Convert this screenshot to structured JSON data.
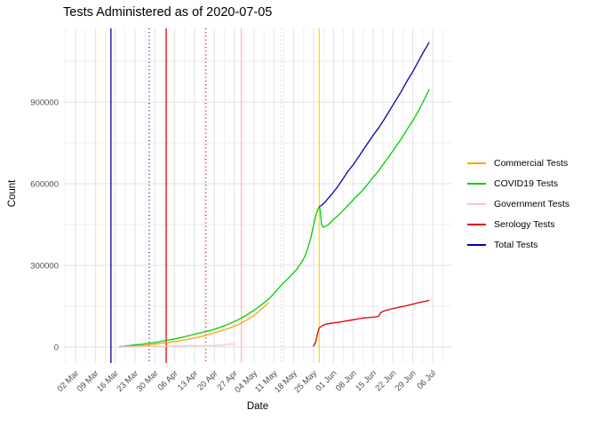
{
  "title": "Tests Administered as of 2020-07-05",
  "chart_data": {
    "type": "line",
    "title": "Tests Administered as of 2020-07-05",
    "xlabel": "Date",
    "ylabel": "Count",
    "x_unit": "days since 02 Mar 2020",
    "grid": true,
    "legend_position": "right",
    "ylim": [
      -56000,
      1171000
    ],
    "y_ticks": [
      0,
      300000,
      600000,
      900000
    ],
    "y_minor_ticks": [
      150000,
      450000,
      750000,
      1050000
    ],
    "x_ticks": [
      {
        "label": "02 Mar",
        "day": 0
      },
      {
        "label": "09 Mar",
        "day": 7
      },
      {
        "label": "16 Mar",
        "day": 14
      },
      {
        "label": "23 Mar",
        "day": 21
      },
      {
        "label": "30 Mar",
        "day": 28
      },
      {
        "label": "06 Apr",
        "day": 35
      },
      {
        "label": "13 Apr",
        "day": 42
      },
      {
        "label": "20 Apr",
        "day": 49
      },
      {
        "label": "27 Apr",
        "day": 56
      },
      {
        "label": "04 May",
        "day": 63
      },
      {
        "label": "11 May",
        "day": 70
      },
      {
        "label": "18 May",
        "day": 77
      },
      {
        "label": "25 May",
        "day": 84
      },
      {
        "label": "01 Jun",
        "day": 91
      },
      {
        "label": "08 Jun",
        "day": 98
      },
      {
        "label": "15 Jun",
        "day": 105
      },
      {
        "label": "22 Jun",
        "day": 112
      },
      {
        "label": "29 Jun",
        "day": 119
      },
      {
        "label": "06 Jul",
        "day": 126
      }
    ],
    "vlines": [
      {
        "day": 12.5,
        "color": "#0000A8",
        "style": "solid"
      },
      {
        "day": 26,
        "color": "#0000CD",
        "style": "dotted"
      },
      {
        "day": 32,
        "color": "#F00000",
        "style": "solid"
      },
      {
        "day": 46,
        "color": "#C80000",
        "style": "dotted"
      },
      {
        "day": 58.5,
        "color": "#FFB6C1",
        "style": "solid"
      },
      {
        "day": 72.5,
        "color": "#FFB6C1",
        "style": "dotted"
      },
      {
        "day": 86,
        "color": "#FFDE00",
        "style": "solid"
      }
    ],
    "series": [
      {
        "name": "Commercial Tests",
        "color": "#FFA500",
        "points": [
          [
            15.7,
            800
          ],
          [
            20,
            3000
          ],
          [
            25,
            7000
          ],
          [
            30,
            13000
          ],
          [
            35,
            20000
          ],
          [
            40,
            29000
          ],
          [
            45,
            40000
          ],
          [
            50,
            55000
          ],
          [
            54,
            68000
          ],
          [
            58,
            85000
          ],
          [
            61,
            103000
          ],
          [
            64,
            124000
          ],
          [
            66,
            143000
          ],
          [
            68,
            162000
          ]
        ]
      },
      {
        "name": "COVID19 Tests",
        "color": "#00CE00",
        "points": [
          [
            15.7,
            2000
          ],
          [
            18,
            4500
          ],
          [
            21,
            7500
          ],
          [
            24,
            11000
          ],
          [
            27,
            15000
          ],
          [
            30,
            20000
          ],
          [
            33,
            26000
          ],
          [
            36,
            32000
          ],
          [
            39,
            39000
          ],
          [
            42,
            47000
          ],
          [
            45,
            54000
          ],
          [
            48,
            62000
          ],
          [
            51,
            72000
          ],
          [
            54,
            84000
          ],
          [
            57,
            98000
          ],
          [
            60,
            115000
          ],
          [
            63,
            135000
          ],
          [
            66,
            158000
          ],
          [
            68,
            175000
          ],
          [
            70,
            196000
          ],
          [
            72,
            220000
          ],
          [
            74,
            242000
          ],
          [
            76,
            262000
          ],
          [
            78,
            285000
          ],
          [
            80,
            315000
          ],
          [
            81,
            335000
          ],
          [
            82,
            365000
          ],
          [
            83,
            400000
          ],
          [
            84,
            448000
          ],
          [
            85,
            492000
          ],
          [
            85.8,
            512000
          ],
          [
            86.3,
            508000
          ],
          [
            86.8,
            450000
          ],
          [
            87.5,
            440000
          ],
          [
            89,
            448000
          ],
          [
            91,
            468000
          ],
          [
            93,
            487000
          ],
          [
            95,
            508000
          ],
          [
            97,
            530000
          ],
          [
            99,
            552000
          ],
          [
            101,
            572000
          ],
          [
            103,
            597000
          ],
          [
            105,
            624000
          ],
          [
            107,
            648000
          ],
          [
            109,
            678000
          ],
          [
            111,
            706000
          ],
          [
            113,
            736000
          ],
          [
            115,
            766000
          ],
          [
            117,
            800000
          ],
          [
            119,
            832000
          ],
          [
            121,
            868000
          ],
          [
            123,
            908000
          ],
          [
            124.7,
            945000
          ]
        ]
      },
      {
        "name": "Government Tests",
        "color": "#FFC0CB",
        "points": [
          [
            16,
            1800
          ],
          [
            25,
            2500
          ],
          [
            35,
            3500
          ],
          [
            45,
            4800
          ],
          [
            50,
            5800
          ],
          [
            52,
            6500
          ],
          [
            53,
            9200
          ],
          [
            54.5,
            10300
          ],
          [
            56,
            11000
          ]
        ]
      },
      {
        "name": "Serology Tests",
        "color": "#E00000",
        "points": [
          [
            84,
            3000
          ],
          [
            84.8,
            20000
          ],
          [
            85.3,
            45000
          ],
          [
            85.8,
            65000
          ],
          [
            86.2,
            72000
          ],
          [
            87,
            78000
          ],
          [
            88,
            83000
          ],
          [
            90,
            87000
          ],
          [
            92,
            90000
          ],
          [
            94,
            93000
          ],
          [
            96,
            97000
          ],
          [
            98,
            100000
          ],
          [
            100,
            104000
          ],
          [
            102,
            107000
          ],
          [
            104,
            109000
          ],
          [
            106,
            111000
          ],
          [
            107,
            113000
          ],
          [
            107.6,
            126000
          ],
          [
            108.5,
            131000
          ],
          [
            110,
            136000
          ],
          [
            112,
            141000
          ],
          [
            114,
            146000
          ],
          [
            116,
            150000
          ],
          [
            118,
            155000
          ],
          [
            120,
            160000
          ],
          [
            122,
            165000
          ],
          [
            124,
            169000
          ],
          [
            124.7,
            172000
          ]
        ]
      },
      {
        "name": "Total Tests",
        "color": "#0000B4",
        "points": [
          [
            86,
            515000
          ],
          [
            87,
            522000
          ],
          [
            88,
            532000
          ],
          [
            89,
            545000
          ],
          [
            90,
            556000
          ],
          [
            92,
            582000
          ],
          [
            94,
            612000
          ],
          [
            96,
            644000
          ],
          [
            98,
            670000
          ],
          [
            100,
            700000
          ],
          [
            102,
            732000
          ],
          [
            104,
            762000
          ],
          [
            105,
            778000
          ],
          [
            107,
            806000
          ],
          [
            109,
            838000
          ],
          [
            111,
            872000
          ],
          [
            113,
            906000
          ],
          [
            115,
            940000
          ],
          [
            117,
            978000
          ],
          [
            119,
            1012000
          ],
          [
            121,
            1050000
          ],
          [
            123,
            1088000
          ],
          [
            124.7,
            1118000
          ]
        ]
      }
    ],
    "colors": {
      "grid_major": "#E2E2E2",
      "grid_minor": "#EFEFEF",
      "tick_label": "#4D4D4D",
      "text": "#000000"
    }
  }
}
